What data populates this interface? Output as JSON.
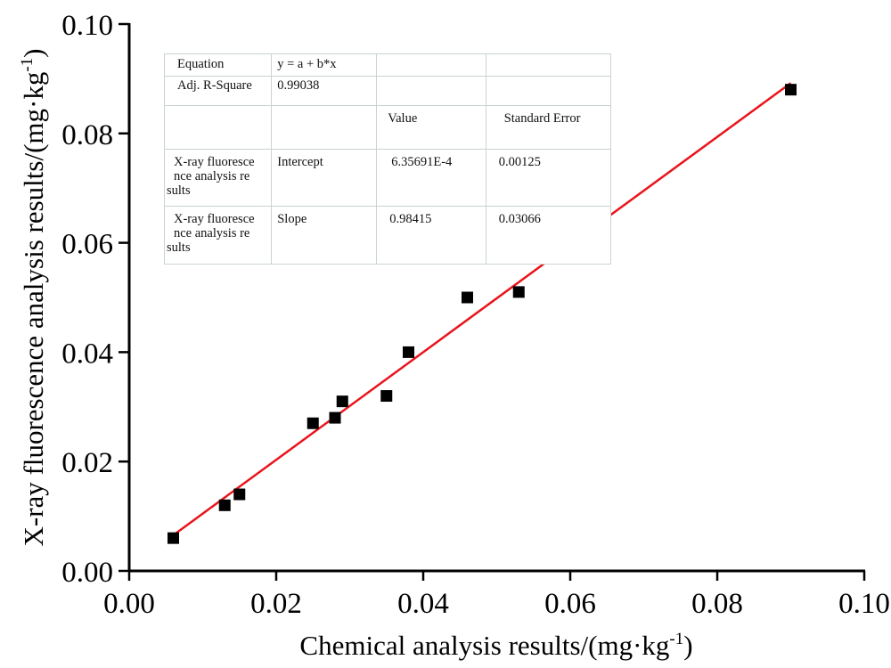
{
  "chart_data": {
    "type": "scatter",
    "title": "",
    "xlabel": "Chemical analysis results/(mg·kg",
    "xlabel_sup": "-1",
    "xlabel_end": ")",
    "ylabel": "X-ray fluorescence analysis results/(mg·kg",
    "ylabel_sup": "-1",
    "ylabel_end": ")",
    "xlim": [
      0.0,
      0.1
    ],
    "ylim": [
      0.0,
      0.1
    ],
    "xticks": [
      "0.00",
      "0.02",
      "0.04",
      "0.06",
      "0.08",
      "0.10"
    ],
    "yticks": [
      "0.00",
      "0.02",
      "0.04",
      "0.06",
      "0.08",
      "0.10"
    ],
    "grid": false,
    "series": [
      {
        "name": "X-ray fluorescence analysis results",
        "marker": "square",
        "color": "#000000",
        "x": [
          0.006,
          0.013,
          0.015,
          0.025,
          0.028,
          0.029,
          0.035,
          0.038,
          0.046,
          0.053,
          0.09
        ],
        "y": [
          0.006,
          0.012,
          0.014,
          0.027,
          0.028,
          0.031,
          0.032,
          0.04,
          0.05,
          0.051,
          0.088
        ]
      }
    ],
    "fit_line": {
      "color": "#e8141c",
      "intercept": 0.000635691,
      "slope": 0.98415,
      "x_range": [
        0.006,
        0.09
      ]
    },
    "fit_table": {
      "equation_label": "Equation",
      "equation": "y = a + b*x",
      "adj_r2_label": "Adj. R-Square",
      "adj_r2": "0.99038",
      "value_header": "Value",
      "stderr_header": "Standard Error",
      "rows": [
        {
          "name_lines": [
            "X-ray fluoresce",
            "nce analysis re",
            "sults"
          ],
          "param": "Intercept",
          "value": "6.35691E-4",
          "stderr": "0.00125"
        },
        {
          "name_lines": [
            "X-ray fluoresce",
            "nce analysis re",
            "sults"
          ],
          "param": "Slope",
          "value": "0.98415",
          "stderr": "0.03066"
        }
      ]
    }
  }
}
